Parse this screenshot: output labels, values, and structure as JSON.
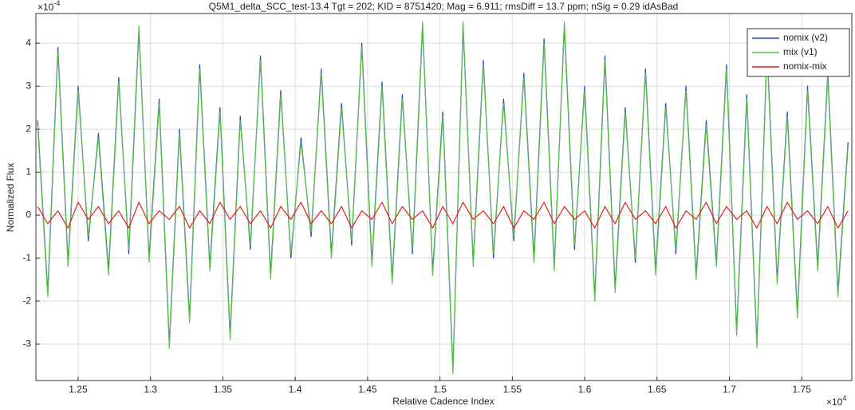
{
  "chart_data": {
    "type": "line",
    "title": "Q5M1_delta_SCC_test-13.4 Tgt = 202; KID = 8751420; Mag = 6.911; rmsDiff = 13.7 ppm; nSig = 0.29 idAsBad",
    "x_label": "Relative Cadence Index",
    "y_label": "Normalized Flux",
    "x_exponent": {
      "base": "×10",
      "power": "4"
    },
    "y_exponent": {
      "base": "×10",
      "power": "-4"
    },
    "x": [
      1.222,
      1.229,
      1.236,
      1.243,
      1.25,
      1.257,
      1.264,
      1.271,
      1.278,
      1.285,
      1.292,
      1.299,
      1.306,
      1.313,
      1.32,
      1.327,
      1.334,
      1.341,
      1.348,
      1.355,
      1.362,
      1.369,
      1.376,
      1.383,
      1.39,
      1.397,
      1.404,
      1.411,
      1.418,
      1.425,
      1.432,
      1.439,
      1.446,
      1.453,
      1.46,
      1.467,
      1.474,
      1.481,
      1.488,
      1.495,
      1.502,
      1.509,
      1.516,
      1.523,
      1.53,
      1.537,
      1.544,
      1.551,
      1.558,
      1.565,
      1.572,
      1.579,
      1.586,
      1.593,
      1.6,
      1.607,
      1.614,
      1.621,
      1.628,
      1.635,
      1.642,
      1.649,
      1.656,
      1.663,
      1.67,
      1.677,
      1.684,
      1.691,
      1.698,
      1.705,
      1.712,
      1.719,
      1.726,
      1.733,
      1.74,
      1.747,
      1.754,
      1.761,
      1.768,
      1.775,
      1.782
    ],
    "series": [
      {
        "name": "nomix (v2)",
        "color": "#2b3fc8",
        "values": [
          2.2,
          -1.8,
          3.9,
          -1.1,
          3.0,
          -0.6,
          1.9,
          -1.3,
          3.2,
          -0.9,
          4.3,
          -1.0,
          2.7,
          -3.0,
          2.0,
          -2.4,
          3.5,
          -1.2,
          2.5,
          -2.8,
          2.3,
          -0.8,
          3.7,
          -1.4,
          2.9,
          -1.0,
          1.8,
          -0.5,
          3.4,
          -0.9,
          2.6,
          -0.7,
          4.0,
          -1.1,
          3.1,
          -1.5,
          2.8,
          -0.9,
          4.4,
          -1.3,
          2.4,
          -3.6,
          4.4,
          -1.1,
          3.6,
          -1.0,
          2.7,
          -0.6,
          3.3,
          -1.0,
          4.1,
          -1.2,
          4.4,
          -0.8,
          3.0,
          -1.9,
          3.7,
          -1.7,
          2.5,
          -1.1,
          3.4,
          -1.3,
          2.6,
          -0.9,
          3.0,
          -1.4,
          2.2,
          -1.1,
          3.5,
          -2.7,
          2.8,
          -3.0,
          3.9,
          -1.5,
          2.4,
          -2.3,
          3.0,
          -1.2,
          3.3,
          -1.8,
          1.7
        ]
      },
      {
        "name": "mix (v1)",
        "color": "#5cbf4a",
        "values": [
          2.1,
          -1.9,
          3.8,
          -1.2,
          2.9,
          -0.5,
          1.8,
          -1.4,
          3.1,
          -0.8,
          4.4,
          -1.1,
          2.6,
          -3.1,
          1.9,
          -2.5,
          3.4,
          -1.3,
          2.4,
          -2.9,
          2.2,
          -0.7,
          3.6,
          -1.5,
          2.8,
          -0.9,
          1.7,
          -0.4,
          3.3,
          -1.0,
          2.5,
          -0.6,
          3.9,
          -1.2,
          3.0,
          -1.6,
          2.7,
          -0.8,
          4.5,
          -1.4,
          2.3,
          -3.7,
          4.5,
          -1.2,
          3.5,
          -0.9,
          2.6,
          -0.5,
          3.2,
          -1.1,
          4.0,
          -1.3,
          4.5,
          -0.7,
          2.9,
          -2.0,
          3.6,
          -1.8,
          2.4,
          -1.0,
          3.3,
          -1.4,
          2.5,
          -0.8,
          2.9,
          -1.5,
          2.1,
          -1.2,
          3.4,
          -2.8,
          2.7,
          -3.1,
          3.8,
          -1.6,
          2.3,
          -2.4,
          2.9,
          -1.3,
          3.2,
          -1.9,
          1.6
        ]
      },
      {
        "name": "nomix-mix",
        "color": "#e02020",
        "values": [
          0.2,
          -0.2,
          0.1,
          -0.3,
          0.3,
          -0.1,
          0.2,
          -0.2,
          0.1,
          -0.3,
          0.3,
          -0.2,
          0.1,
          -0.1,
          0.2,
          -0.3,
          0.1,
          -0.2,
          0.3,
          -0.1,
          0.2,
          -0.2,
          0.1,
          -0.3,
          0.2,
          -0.1,
          0.3,
          -0.2,
          0.1,
          -0.2,
          0.2,
          -0.3,
          0.1,
          -0.1,
          0.3,
          -0.2,
          0.2,
          -0.1,
          0.1,
          -0.3,
          0.2,
          -0.2,
          0.3,
          -0.1,
          0.1,
          -0.2,
          0.2,
          -0.3,
          0.1,
          -0.1,
          0.3,
          -0.2,
          0.2,
          -0.1,
          0.1,
          -0.3,
          0.2,
          -0.2,
          0.3,
          -0.1,
          0.1,
          -0.2,
          0.2,
          -0.3,
          0.1,
          -0.1,
          0.3,
          -0.2,
          0.2,
          -0.1,
          0.1,
          -0.3,
          0.2,
          -0.2,
          0.3,
          -0.1,
          0.1,
          -0.2,
          0.2,
          -0.3,
          0.1
        ]
      }
    ],
    "xlim": [
      1.2208,
      1.7846
    ],
    "ylim": [
      -3.85,
      4.69
    ],
    "xticks": [
      1.25,
      1.3,
      1.35,
      1.4,
      1.45,
      1.5,
      1.55,
      1.6,
      1.65,
      1.7,
      1.75
    ],
    "yticks": [
      -3,
      -2,
      -1,
      0,
      1,
      2,
      3,
      4
    ],
    "grid": true,
    "legend": "upper right"
  }
}
